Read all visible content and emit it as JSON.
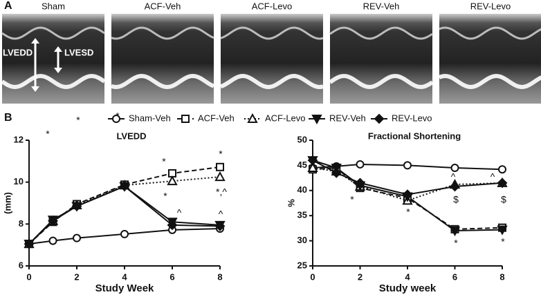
{
  "panel_a": {
    "label": "A",
    "titles": [
      "Sham",
      "ACF-Veh",
      "ACF-Levo",
      "REV-Veh",
      "REV-Levo"
    ],
    "lvedd": "LVEDD",
    "lvesd": "LVESD"
  },
  "panel_b": {
    "label": "B"
  },
  "chart_data": [
    {
      "type": "line",
      "title": "LVEDD",
      "x_label": "Study Week",
      "y_label": "(mm)",
      "x": [
        0,
        1,
        2,
        4,
        6,
        8
      ],
      "xlim": [
        0,
        8
      ],
      "xticks": [
        0,
        2,
        4,
        6,
        8
      ],
      "ylim": [
        6,
        12
      ],
      "yticks": [
        6,
        8,
        10,
        12
      ],
      "series": [
        {
          "name": "Sham-Veh",
          "color": "#111111",
          "marker": "circle",
          "dash": "solid",
          "values": [
            7.05,
            7.2,
            7.33,
            7.52,
            7.72,
            7.78
          ]
        },
        {
          "name": "ACF-Veh",
          "color": "#111111",
          "marker": "square",
          "dash": "dashed",
          "values": [
            7.05,
            8.1,
            8.95,
            9.88,
            10.42,
            10.72
          ]
        },
        {
          "name": "ACF-Levo",
          "color": "#111111",
          "marker": "triangle",
          "dash": "dotted",
          "values": [
            7.05,
            8.15,
            8.9,
            9.85,
            10.05,
            10.25
          ]
        },
        {
          "name": "REV-Veh",
          "color": "#111111",
          "marker": "down-triangle",
          "dash": "solid",
          "values": [
            7.05,
            8.2,
            8.85,
            9.8,
            8.1,
            7.95
          ]
        },
        {
          "name": "REV-Levo",
          "color": "#111111",
          "marker": "diamond",
          "dash": "solid",
          "values": [
            7.05,
            8.15,
            8.85,
            9.8,
            7.95,
            7.9
          ]
        }
      ],
      "annotations": [
        "*",
        "*",
        "*",
        "*",
        "*",
        "*",
        "^",
        "*,^",
        "^"
      ]
    },
    {
      "type": "line",
      "title": "Fractional Shortening",
      "x_label": "Study week",
      "y_label": "%",
      "x": [
        0,
        1,
        2,
        4,
        6,
        8
      ],
      "xlim": [
        0,
        8
      ],
      "xticks": [
        0,
        2,
        4,
        6,
        8
      ],
      "ylim": [
        25,
        50
      ],
      "yticks": [
        25,
        30,
        35,
        40,
        45,
        50
      ],
      "series": [
        {
          "name": "Sham-Veh",
          "color": "#111111",
          "marker": "circle",
          "dash": "solid",
          "values": [
            44.5,
            44.8,
            45.2,
            45.0,
            44.5,
            44.2
          ]
        },
        {
          "name": "ACF-Veh",
          "color": "#111111",
          "marker": "square",
          "dash": "dashed",
          "values": [
            44.2,
            44.5,
            40.5,
            38.5,
            32.3,
            32.6
          ]
        },
        {
          "name": "ACF-Levo",
          "color": "#111111",
          "marker": "triangle",
          "dash": "dotted",
          "values": [
            44.5,
            43.8,
            40.8,
            38.0,
            41.2,
            41.5
          ]
        },
        {
          "name": "REV-Veh",
          "color": "#111111",
          "marker": "down-triangle",
          "dash": "solid",
          "values": [
            46.0,
            44.5,
            41.0,
            38.8,
            32.0,
            32.2
          ]
        },
        {
          "name": "REV-Levo",
          "color": "#111111",
          "marker": "diamond",
          "dash": "solid",
          "values": [
            46.0,
            43.5,
            41.5,
            39.2,
            40.8,
            41.5
          ]
        }
      ],
      "annotations": [
        "*",
        "*",
        "^",
        "$",
        "^",
        "$",
        "*",
        "*"
      ]
    }
  ]
}
